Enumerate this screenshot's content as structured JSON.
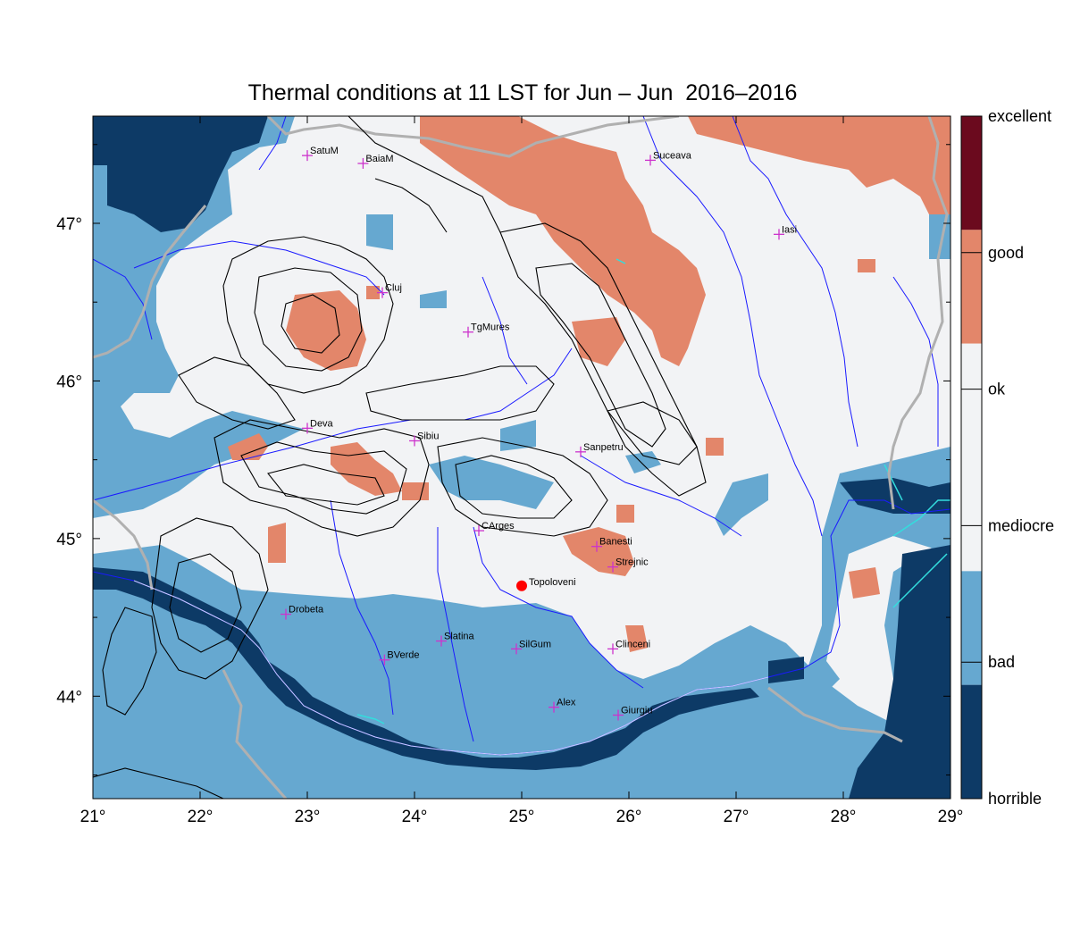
{
  "title": "Thermal conditions at 11 LST for Jun – Jun  2016–2016",
  "colors": {
    "horrible": "#0d3a66",
    "bad": "#66a8d0",
    "mediocre": "#f2f3f5",
    "ok": "#f2f3f5",
    "good": "#e3866a",
    "excellent": "#6b0a1e",
    "river": "#1a1aff",
    "border": "#b0b0b0",
    "contour": "#000000",
    "lake": "#33dddd",
    "city_marker": "#cc33cc",
    "highlight_point": "#ff0000"
  },
  "map": {
    "lon_range": [
      21,
      29
    ],
    "lat_range": [
      43.35,
      47.68
    ],
    "x_ticks": [
      "21°",
      "22°",
      "23°",
      "24°",
      "25°",
      "26°",
      "27°",
      "28°",
      "29°"
    ],
    "y_ticks": [
      "44°",
      "45°",
      "46°",
      "47°"
    ],
    "y_tick_values": [
      44,
      45,
      46,
      47
    ],
    "cities": [
      {
        "name": "SatuM",
        "lon": 23.0,
        "lat": 47.43
      },
      {
        "name": "BaiaM",
        "lon": 23.52,
        "lat": 47.38
      },
      {
        "name": "Suceava",
        "lon": 26.2,
        "lat": 47.4
      },
      {
        "name": "Iasi",
        "lon": 27.4,
        "lat": 46.93
      },
      {
        "name": "Cluj",
        "lon": 23.7,
        "lat": 46.56
      },
      {
        "name": "TgMures",
        "lon": 24.5,
        "lat": 46.31
      },
      {
        "name": "Deva",
        "lon": 23.0,
        "lat": 45.7
      },
      {
        "name": "Sibiu",
        "lon": 24.0,
        "lat": 45.62
      },
      {
        "name": "Sanpetru",
        "lon": 25.55,
        "lat": 45.55
      },
      {
        "name": "CArges",
        "lon": 24.6,
        "lat": 45.05
      },
      {
        "name": "Banesti",
        "lon": 25.7,
        "lat": 44.95
      },
      {
        "name": "Strejnic",
        "lon": 25.85,
        "lat": 44.82
      },
      {
        "name": "Drobeta",
        "lon": 22.8,
        "lat": 44.52
      },
      {
        "name": "Slatina",
        "lon": 24.25,
        "lat": 44.35
      },
      {
        "name": "SilGum",
        "lon": 24.95,
        "lat": 44.3
      },
      {
        "name": "Clinceni",
        "lon": 25.85,
        "lat": 44.3
      },
      {
        "name": "BVerde",
        "lon": 23.72,
        "lat": 44.23
      },
      {
        "name": "Alex",
        "lon": 25.3,
        "lat": 43.93
      },
      {
        "name": "Giurgiu",
        "lon": 25.9,
        "lat": 43.88
      }
    ],
    "highlight": {
      "name": "Topoloveni",
      "lon": 25.0,
      "lat": 44.7
    }
  },
  "legend": {
    "labels": [
      "excellent",
      "good",
      "ok",
      "mediocre",
      "bad",
      "horrible"
    ],
    "bands": [
      {
        "class": "excellent",
        "color": "#6b0a1e"
      },
      {
        "class": "good",
        "color": "#e3866a"
      },
      {
        "class": "ok",
        "color": "#f2f3f5"
      },
      {
        "class": "mediocre",
        "color": "#f2f3f5"
      },
      {
        "class": "bad",
        "color": "#66a8d0"
      },
      {
        "class": "horrible",
        "color": "#0d3a66"
      }
    ]
  }
}
